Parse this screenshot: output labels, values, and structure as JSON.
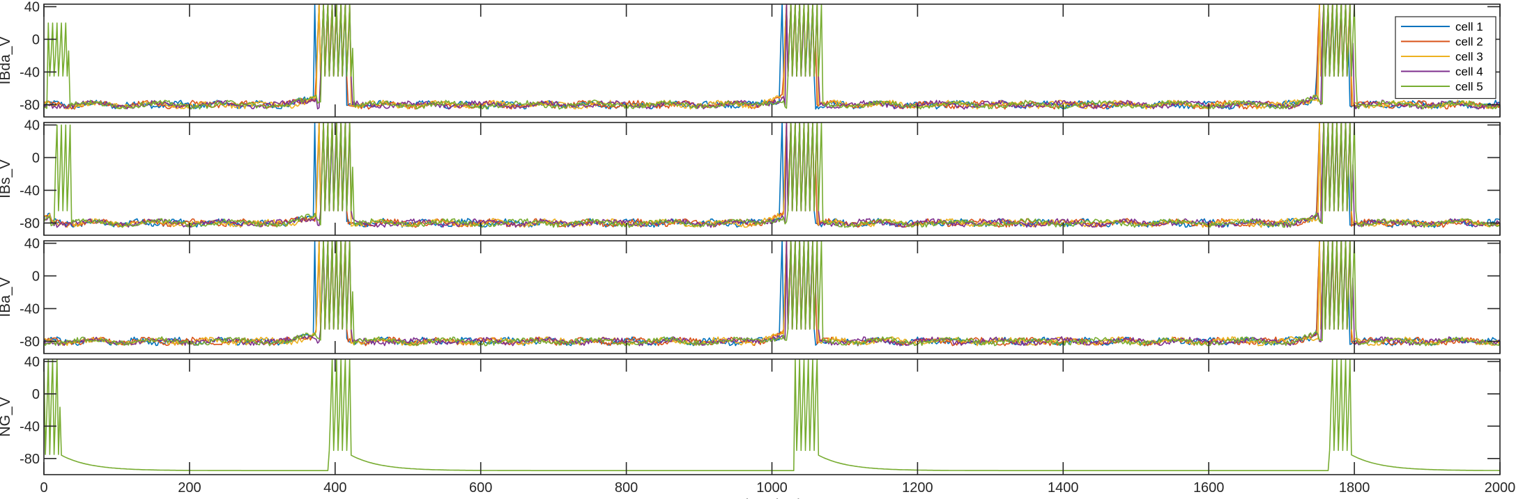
{
  "chart_data": [
    {
      "type": "line",
      "ylabel": "IBda_V",
      "ylim": [
        -95,
        43
      ],
      "yticks": [
        40,
        0,
        -40,
        -80
      ],
      "xlim": [
        0,
        2000
      ],
      "legend": "top-right",
      "series": [
        {
          "name": "cell 1",
          "color": "#0072BD"
        },
        {
          "name": "cell 2",
          "color": "#D95319"
        },
        {
          "name": "cell 3",
          "color": "#EDB120"
        },
        {
          "name": "cell 4",
          "color": "#7E2F8E"
        },
        {
          "name": "cell 5",
          "color": "#77AC30"
        }
      ],
      "baseline_mV": -80,
      "bursts": [
        {
          "start": 0,
          "end": 30,
          "cells": [
            5
          ],
          "min": -45,
          "max": 20
        },
        {
          "start": 376,
          "end": 420,
          "cells": [
            1,
            2,
            3,
            4,
            5
          ],
          "min": -45,
          "max": 43
        },
        {
          "start": 1017,
          "end": 1063,
          "cells": [
            1,
            2,
            3,
            4,
            5
          ],
          "min": -45,
          "max": 43
        },
        {
          "start": 1752,
          "end": 1797,
          "cells": [
            1,
            2,
            3,
            4,
            5
          ],
          "min": -45,
          "max": 43
        }
      ]
    },
    {
      "type": "line",
      "ylabel": "IBs_V",
      "ylim": [
        -95,
        43
      ],
      "yticks": [
        40,
        0,
        -40,
        -80
      ],
      "xlim": [
        0,
        2000
      ],
      "baseline_mV": -80,
      "bursts": [
        {
          "start": 10,
          "end": 32,
          "cells": [
            5
          ],
          "min": -65,
          "max": 40
        },
        {
          "start": 376,
          "end": 420,
          "cells": [
            1,
            2,
            3,
            4,
            5
          ],
          "min": -65,
          "max": 43
        },
        {
          "start": 1017,
          "end": 1063,
          "cells": [
            1,
            2,
            3,
            4,
            5
          ],
          "min": -65,
          "max": 43
        },
        {
          "start": 1752,
          "end": 1797,
          "cells": [
            1,
            2,
            3,
            4,
            5
          ],
          "min": -65,
          "max": 43
        }
      ]
    },
    {
      "type": "line",
      "ylabel": "IBa_V",
      "ylim": [
        -95,
        43
      ],
      "yticks": [
        40,
        0,
        -40,
        -80
      ],
      "xlim": [
        0,
        2000
      ],
      "baseline_mV": -80,
      "bursts": [
        {
          "start": 376,
          "end": 420,
          "cells": [
            1,
            2,
            3,
            4,
            5
          ],
          "min": -65,
          "max": 43
        },
        {
          "start": 1017,
          "end": 1063,
          "cells": [
            1,
            2,
            3,
            4,
            5
          ],
          "min": -65,
          "max": 43
        },
        {
          "start": 1752,
          "end": 1797,
          "cells": [
            1,
            2,
            3,
            4,
            5
          ],
          "min": -65,
          "max": 43
        }
      ]
    },
    {
      "type": "line",
      "ylabel": "NG_V",
      "ylim": [
        -100,
        43
      ],
      "yticks": [
        40,
        0,
        -40,
        -80
      ],
      "xlim": [
        0,
        2000
      ],
      "xticks": [
        0,
        200,
        400,
        600,
        800,
        1000,
        1200,
        1400,
        1600,
        1800,
        2000
      ],
      "xlabel": "time (ms)",
      "baseline_mV": -95,
      "bursts": [
        {
          "start": 0,
          "end": 22,
          "cells": [
            5
          ],
          "min": -75,
          "max": 43
        },
        {
          "start": 392,
          "end": 420,
          "cells": [
            5
          ],
          "min": -70,
          "max": 43
        },
        {
          "start": 1032,
          "end": 1062,
          "cells": [
            5
          ],
          "min": -70,
          "max": 43
        },
        {
          "start": 1765,
          "end": 1795,
          "cells": [
            5
          ],
          "min": -70,
          "max": 43
        }
      ]
    }
  ]
}
